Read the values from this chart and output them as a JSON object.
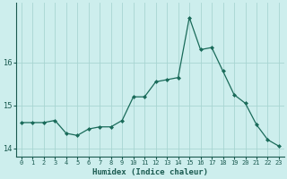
{
  "x": [
    0,
    1,
    2,
    3,
    4,
    5,
    6,
    7,
    8,
    9,
    10,
    11,
    12,
    13,
    14,
    15,
    16,
    17,
    18,
    19,
    20,
    21,
    22,
    23
  ],
  "y": [
    14.6,
    14.6,
    14.6,
    14.65,
    14.35,
    14.3,
    14.45,
    14.5,
    14.5,
    14.65,
    15.2,
    15.2,
    15.55,
    15.6,
    15.65,
    17.05,
    16.3,
    16.35,
    15.8,
    15.25,
    15.05,
    14.55,
    14.2,
    14.05
  ],
  "xlabel": "Humidex (Indice chaleur)",
  "ylabel": "",
  "line_color": "#1a6b5a",
  "marker": "D",
  "markersize": 2.0,
  "linewidth": 0.9,
  "bg_color": "#cdeeed",
  "plot_bg_color": "#cdeeed",
  "grid_color": "#a8d5d2",
  "tick_label_color": "#1a5a50",
  "ylim": [
    13.8,
    17.4
  ],
  "yticks": [
    14,
    15,
    16
  ],
  "xlim": [
    -0.5,
    23.5
  ]
}
